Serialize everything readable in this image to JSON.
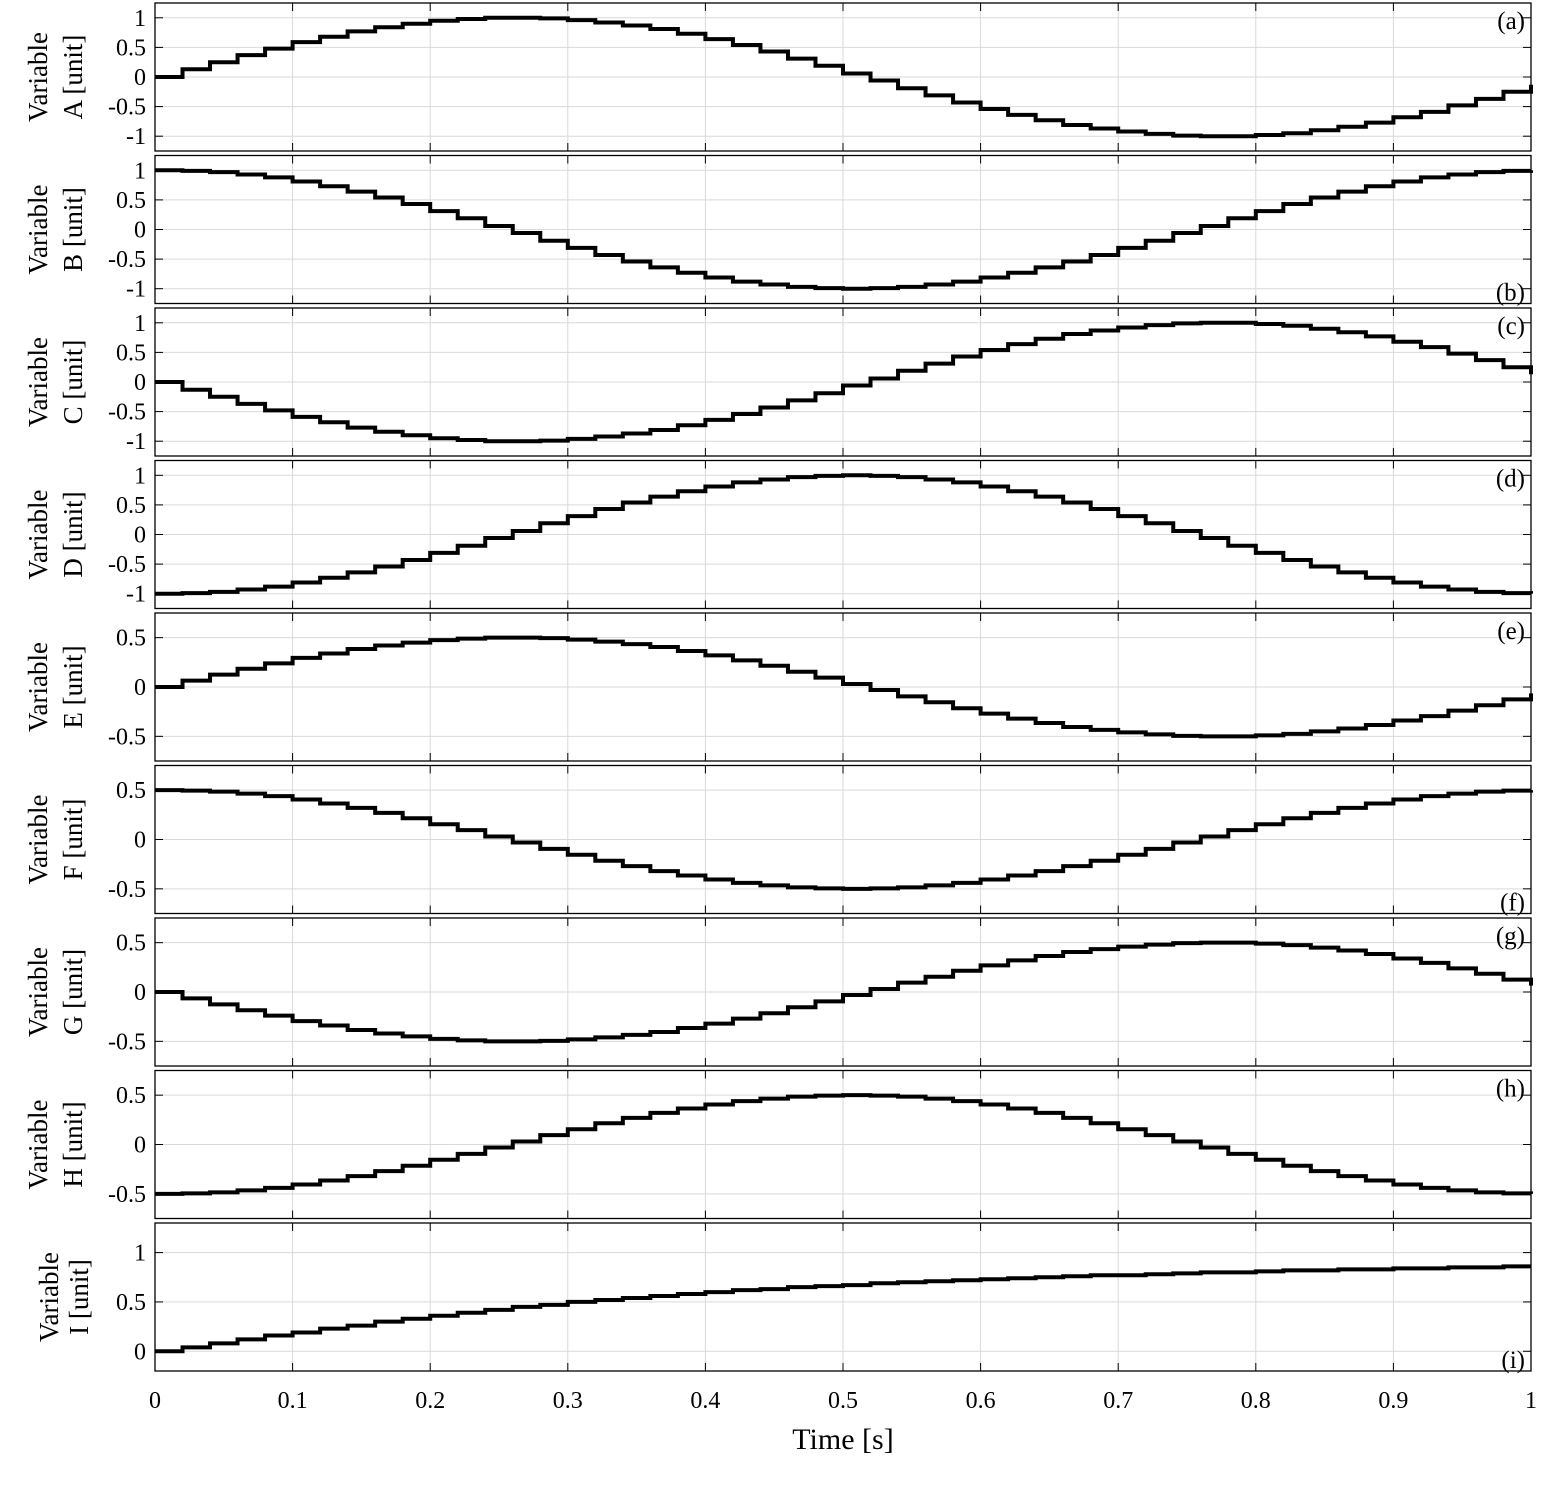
{
  "chart_data": {
    "type": "line",
    "style": "stairs",
    "line_color": "#000000",
    "grid_color": "#d9d9d9",
    "grid": true,
    "xlabel": "Time [s]",
    "xlim": [
      0,
      1
    ],
    "xticks": [
      0,
      0.1,
      0.2,
      0.3,
      0.4,
      0.5,
      0.6,
      0.7,
      0.8,
      0.9,
      1
    ],
    "xtick_labels": [
      "0",
      "0.1",
      "0.2",
      "0.3",
      "0.4",
      "0.5",
      "0.6",
      "0.7",
      "0.8",
      "0.9",
      "1"
    ],
    "step": 0.02,
    "panels": [
      {
        "label": "(a)",
        "label_position": "top-right",
        "ylabel_line1": "Variable",
        "ylabel_line2": "A [unit]",
        "ylim": [
          -1.25,
          1.25
        ],
        "yticks": [
          -1,
          -0.5,
          0,
          0.5,
          1
        ],
        "ytick_labels": [
          "-1",
          "-0.5",
          "0",
          "0.5",
          "1"
        ],
        "values": [
          0.0,
          0.13,
          0.25,
          0.37,
          0.48,
          0.59,
          0.68,
          0.77,
          0.84,
          0.9,
          0.95,
          0.98,
          1.0,
          1.0,
          0.99,
          0.96,
          0.92,
          0.87,
          0.81,
          0.73,
          0.64,
          0.54,
          0.43,
          0.31,
          0.19,
          0.06,
          -0.06,
          -0.19,
          -0.31,
          -0.43,
          -0.54,
          -0.64,
          -0.73,
          -0.81,
          -0.87,
          -0.92,
          -0.96,
          -0.99,
          -1.0,
          -1.0,
          -0.98,
          -0.95,
          -0.9,
          -0.84,
          -0.77,
          -0.68,
          -0.59,
          -0.48,
          -0.37,
          -0.25,
          -0.13
        ]
      },
      {
        "label": "(b)",
        "label_position": "bottom-right",
        "ylabel_line1": "Variable",
        "ylabel_line2": "B [unit]",
        "ylim": [
          -1.25,
          1.25
        ],
        "yticks": [
          -1,
          -0.5,
          0,
          0.5,
          1
        ],
        "ytick_labels": [
          "-1",
          "-0.5",
          "0",
          "0.5",
          "1"
        ],
        "values": [
          1.0,
          0.99,
          0.97,
          0.93,
          0.88,
          0.81,
          0.73,
          0.64,
          0.54,
          0.43,
          0.31,
          0.19,
          0.06,
          -0.06,
          -0.19,
          -0.31,
          -0.43,
          -0.54,
          -0.64,
          -0.73,
          -0.81,
          -0.88,
          -0.93,
          -0.97,
          -0.99,
          -1.0,
          -0.99,
          -0.97,
          -0.93,
          -0.88,
          -0.81,
          -0.73,
          -0.64,
          -0.54,
          -0.43,
          -0.31,
          -0.19,
          -0.06,
          0.06,
          0.19,
          0.31,
          0.43,
          0.54,
          0.64,
          0.73,
          0.81,
          0.88,
          0.93,
          0.97,
          0.99,
          1.0
        ]
      },
      {
        "label": "(c)",
        "label_position": "top-right",
        "ylabel_line1": "Variable",
        "ylabel_line2": "C [unit]",
        "ylim": [
          -1.25,
          1.25
        ],
        "yticks": [
          -1,
          -0.5,
          0,
          0.5,
          1
        ],
        "ytick_labels": [
          "-1",
          "-0.5",
          "0",
          "0.5",
          "1"
        ],
        "values": [
          0.0,
          -0.13,
          -0.25,
          -0.37,
          -0.48,
          -0.59,
          -0.68,
          -0.77,
          -0.84,
          -0.9,
          -0.95,
          -0.98,
          -1.0,
          -1.0,
          -0.99,
          -0.96,
          -0.92,
          -0.87,
          -0.81,
          -0.73,
          -0.64,
          -0.54,
          -0.43,
          -0.31,
          -0.19,
          -0.06,
          0.06,
          0.19,
          0.31,
          0.43,
          0.54,
          0.64,
          0.73,
          0.81,
          0.87,
          0.92,
          0.96,
          0.99,
          1.0,
          1.0,
          0.98,
          0.95,
          0.9,
          0.84,
          0.77,
          0.68,
          0.59,
          0.48,
          0.37,
          0.25,
          0.13
        ]
      },
      {
        "label": "(d)",
        "label_position": "top-right",
        "ylabel_line1": "Variable",
        "ylabel_line2": "D [unit]",
        "ylim": [
          -1.25,
          1.25
        ],
        "yticks": [
          -1,
          -0.5,
          0,
          0.5,
          1
        ],
        "ytick_labels": [
          "-1",
          "-0.5",
          "0",
          "0.5",
          "1"
        ],
        "values": [
          -1.0,
          -0.99,
          -0.97,
          -0.93,
          -0.88,
          -0.81,
          -0.73,
          -0.64,
          -0.54,
          -0.43,
          -0.31,
          -0.19,
          -0.06,
          0.06,
          0.19,
          0.31,
          0.43,
          0.54,
          0.64,
          0.73,
          0.81,
          0.88,
          0.93,
          0.97,
          0.99,
          1.0,
          0.99,
          0.97,
          0.93,
          0.88,
          0.81,
          0.73,
          0.64,
          0.54,
          0.43,
          0.31,
          0.19,
          0.06,
          -0.06,
          -0.19,
          -0.31,
          -0.43,
          -0.54,
          -0.64,
          -0.73,
          -0.81,
          -0.88,
          -0.93,
          -0.97,
          -0.99,
          -1.0
        ]
      },
      {
        "label": "(e)",
        "label_position": "top-right",
        "ylabel_line1": "Variable",
        "ylabel_line2": "E [unit]",
        "ylim": [
          -0.75,
          0.75
        ],
        "yticks": [
          -0.5,
          0,
          0.5
        ],
        "ytick_labels": [
          "-0.5",
          "0",
          "0.5"
        ],
        "values": [
          0.0,
          0.065,
          0.125,
          0.185,
          0.24,
          0.295,
          0.34,
          0.385,
          0.42,
          0.45,
          0.475,
          0.49,
          0.5,
          0.5,
          0.495,
          0.48,
          0.46,
          0.435,
          0.405,
          0.365,
          0.32,
          0.27,
          0.215,
          0.155,
          0.095,
          0.03,
          -0.03,
          -0.095,
          -0.155,
          -0.215,
          -0.27,
          -0.32,
          -0.365,
          -0.405,
          -0.435,
          -0.46,
          -0.48,
          -0.495,
          -0.5,
          -0.5,
          -0.49,
          -0.475,
          -0.45,
          -0.42,
          -0.385,
          -0.34,
          -0.295,
          -0.24,
          -0.185,
          -0.125,
          -0.065
        ]
      },
      {
        "label": "(f)",
        "label_position": "bottom-right",
        "ylabel_line1": "Variable",
        "ylabel_line2": "F [unit]",
        "ylim": [
          -0.75,
          0.75
        ],
        "yticks": [
          -0.5,
          0,
          0.5
        ],
        "ytick_labels": [
          "-0.5",
          "0",
          "0.5"
        ],
        "values": [
          0.5,
          0.495,
          0.485,
          0.465,
          0.44,
          0.405,
          0.365,
          0.32,
          0.27,
          0.215,
          0.155,
          0.095,
          0.03,
          -0.03,
          -0.095,
          -0.155,
          -0.215,
          -0.27,
          -0.32,
          -0.365,
          -0.405,
          -0.44,
          -0.465,
          -0.485,
          -0.495,
          -0.5,
          -0.495,
          -0.485,
          -0.465,
          -0.44,
          -0.405,
          -0.365,
          -0.32,
          -0.27,
          -0.215,
          -0.155,
          -0.095,
          -0.03,
          0.03,
          0.095,
          0.155,
          0.215,
          0.27,
          0.32,
          0.365,
          0.405,
          0.44,
          0.465,
          0.485,
          0.495,
          0.5
        ]
      },
      {
        "label": "(g)",
        "label_position": "top-right",
        "ylabel_line1": "Variable",
        "ylabel_line2": "G [unit]",
        "ylim": [
          -0.75,
          0.75
        ],
        "yticks": [
          -0.5,
          0,
          0.5
        ],
        "ytick_labels": [
          "-0.5",
          "0",
          "0.5"
        ],
        "values": [
          0.0,
          -0.065,
          -0.125,
          -0.185,
          -0.24,
          -0.295,
          -0.34,
          -0.385,
          -0.42,
          -0.45,
          -0.475,
          -0.49,
          -0.5,
          -0.5,
          -0.495,
          -0.48,
          -0.46,
          -0.435,
          -0.405,
          -0.365,
          -0.32,
          -0.27,
          -0.215,
          -0.155,
          -0.095,
          -0.03,
          0.03,
          0.095,
          0.155,
          0.215,
          0.27,
          0.32,
          0.365,
          0.405,
          0.435,
          0.46,
          0.48,
          0.495,
          0.5,
          0.5,
          0.49,
          0.475,
          0.45,
          0.42,
          0.385,
          0.34,
          0.295,
          0.24,
          0.185,
          0.125,
          0.065
        ]
      },
      {
        "label": "(h)",
        "label_position": "top-right",
        "ylabel_line1": "Variable",
        "ylabel_line2": "H [unit]",
        "ylim": [
          -0.75,
          0.75
        ],
        "yticks": [
          -0.5,
          0,
          0.5
        ],
        "ytick_labels": [
          "-0.5",
          "0",
          "0.5"
        ],
        "values": [
          -0.5,
          -0.495,
          -0.485,
          -0.465,
          -0.44,
          -0.405,
          -0.365,
          -0.32,
          -0.27,
          -0.215,
          -0.155,
          -0.095,
          -0.03,
          0.03,
          0.095,
          0.155,
          0.215,
          0.27,
          0.32,
          0.365,
          0.405,
          0.44,
          0.465,
          0.485,
          0.495,
          0.5,
          0.495,
          0.485,
          0.465,
          0.44,
          0.405,
          0.365,
          0.32,
          0.27,
          0.215,
          0.155,
          0.095,
          0.03,
          -0.03,
          -0.095,
          -0.155,
          -0.215,
          -0.27,
          -0.32,
          -0.365,
          -0.405,
          -0.44,
          -0.465,
          -0.485,
          -0.495,
          -0.5
        ]
      },
      {
        "label": "(i)",
        "label_position": "bottom-right",
        "ylabel_line1": "Variable",
        "ylabel_line2": "I [unit]",
        "ylim": [
          -0.2,
          1.3
        ],
        "yticks": [
          0,
          0.5,
          1
        ],
        "ytick_labels": [
          "0",
          "0.5",
          "1"
        ],
        "values": [
          0.0,
          0.04,
          0.08,
          0.12,
          0.16,
          0.19,
          0.23,
          0.26,
          0.3,
          0.33,
          0.36,
          0.39,
          0.42,
          0.45,
          0.47,
          0.5,
          0.52,
          0.54,
          0.56,
          0.58,
          0.6,
          0.62,
          0.63,
          0.65,
          0.66,
          0.67,
          0.69,
          0.7,
          0.71,
          0.72,
          0.73,
          0.74,
          0.75,
          0.76,
          0.77,
          0.77,
          0.78,
          0.79,
          0.8,
          0.8,
          0.81,
          0.82,
          0.82,
          0.83,
          0.83,
          0.84,
          0.84,
          0.85,
          0.85,
          0.86,
          0.86
        ]
      }
    ]
  }
}
